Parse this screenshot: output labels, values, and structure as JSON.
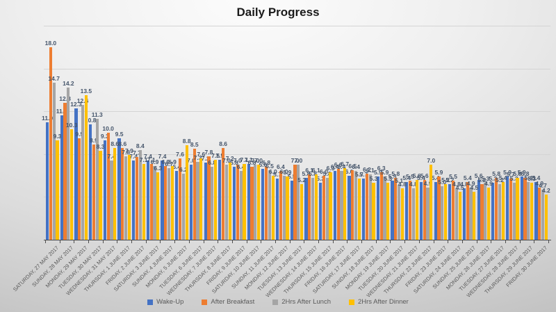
{
  "chart_title": "Daily Progress",
  "chart_data": {
    "type": "bar",
    "title": "Daily Progress",
    "xlabel": "",
    "ylabel": "",
    "ylim": [
      0,
      20
    ],
    "gridline_values": [
      4,
      8,
      12,
      16,
      20
    ],
    "grid": true,
    "legend_position": "bottom",
    "data_labels": true,
    "label_decimals": 1,
    "categories": [
      "SATURDAY, 27 MAY 2017",
      "SUNDAY, 28 MAY 2017",
      "MONDAY, 29 MAY 2017",
      "TUESDAY, 30 MAY 2017",
      "WEDNESDAY, 31 MAY 2017",
      "THURSDAY, 1 JUNE 2017",
      "FRIDAY, 2 JUNE 2017",
      "SATURDAY, 3 JUNE 2017",
      "SUNDAY, 4 JUNE 2017",
      "MONDAY, 5 JUNE 2017",
      "TUESDAY, 6 JUNE 2017",
      "WEDNESDAY, 7 JUNE 2017",
      "THURSDAY, 8 JUNE 2017",
      "FRIDAY, 9 JUNE 2017",
      "SATURDAY, 10 JUNE 2017",
      "SUNDAY, 11 JUNE 2017",
      "MONDAY, 12 JUNE 2017",
      "TUESDAY, 13 JUNE 2017",
      "WEDNESDAY, 14 JUNE 2017",
      "THURSDAY, 15 JUNE 2017",
      "FRIDAY, 16 JUNE 2017",
      "SATURDAY, 17 JUNE 2017",
      "SUNDAY, 18 JUNE 2017",
      "MONDAY, 19 JUNE 2017",
      "TUESDAY, 20 JUNE 2017",
      "WEDNESDAY, 21 JUNE 2017",
      "THURSDAY, 22 JUNE 2017",
      "FRIDAY, 23 JUNE 2017",
      "SATURDAY, 24 JUNE 2017",
      "SUNDAY, 25 JUNE 2017",
      "MONDAY, 26 JUNE 2017",
      "TUESDAY, 27 JUNE 2017",
      "WEDNESDAY, 28 JUNE 2017",
      "THURSDAY, 29 JUNE 2017",
      "FRIDAY, 30 JUNE 2017"
    ],
    "series": [
      {
        "name": "Wake-Up",
        "color": "#4472C4",
        "values": [
          11.0,
          11.6,
          12.3,
          10.8,
          9.3,
          9.5,
          7.4,
          7.4,
          7.4,
          6.4,
          7.0,
          7.2,
          7.5,
          6.8,
          7.1,
          6.6,
          5.7,
          5.5,
          5.8,
          5.3,
          6.4,
          6.0,
          5.7,
          5.9,
          5.5,
          5.4,
          5.4,
          5.4,
          5.2,
          4.8,
          5.6,
          5.3,
          5.9,
          5.9,
          5.4
        ]
      },
      {
        "name": "After Breakfast",
        "color": "#ED7D31",
        "values": [
          18.0,
          12.8,
          9.5,
          8.9,
          10.0,
          8.6,
          7.7,
          7.1,
          6.9,
          7.6,
          8.5,
          7.8,
          8.6,
          7.0,
          6.8,
          6.8,
          6.4,
          7.0,
          6.1,
          6.0,
          6.6,
          6.5,
          6.2,
          6.3,
          5.8,
          5.5,
          5.6,
          5.9,
          5.5,
          5.4,
          5.2,
          5.8,
          5.7,
          5.8,
          4.9
        ]
      },
      {
        "name": "2Hrs After Lunch",
        "color": "#A5A5A5",
        "values": [
          14.7,
          14.2,
          12.6,
          11.3,
          7.4,
          7.8,
          8.4,
          6.9,
          6.7,
          6.2,
          7.3,
          6.8,
          7.0,
          6.4,
          7.0,
          6.5,
          6.0,
          7.0,
          5.8,
          5.8,
          6.4,
          6.4,
          6.1,
          5.9,
          5.1,
          4.8,
          4.9,
          5.0,
          4.8,
          4.9,
          5.3,
          5.2,
          5.3,
          5.4,
          4.7
        ]
      },
      {
        "name": "2Hrs After Dinner",
        "color": "#FFC000",
        "values": [
          9.3,
          10.3,
          13.5,
          8.3,
          8.6,
          7.9,
          7.1,
          6.3,
          6.9,
          8.8,
          7.6,
          7.5,
          7.2,
          7.1,
          7.0,
          6.0,
          5.9,
          5.2,
          6.1,
          6.3,
          6.7,
          5.7,
          5.3,
          5.3,
          4.8,
          5.6,
          7.0,
          5.2,
          4.5,
          4.5,
          4.9,
          5.4,
          5.8,
          5.3,
          4.2
        ]
      }
    ]
  }
}
